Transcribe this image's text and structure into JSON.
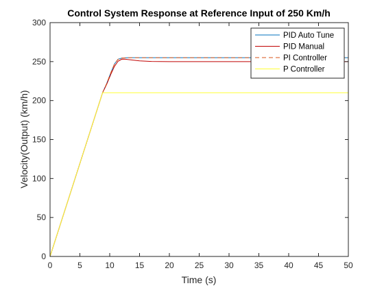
{
  "chart_data": {
    "type": "line",
    "title": "Control System Response at Reference Input of 250 Km/h",
    "xlabel": "Time (s)",
    "ylabel": "Velocity(Output) (km/h)",
    "xlim": [
      0,
      50
    ],
    "ylim": [
      0,
      300
    ],
    "xticks": [
      0,
      5,
      10,
      15,
      20,
      25,
      30,
      35,
      40,
      45,
      50
    ],
    "yticks": [
      0,
      50,
      100,
      150,
      200,
      250,
      300
    ],
    "xtick_labels": [
      "0",
      "5",
      "10",
      "15",
      "20",
      "25",
      "30",
      "35",
      "40",
      "45",
      "50"
    ],
    "ytick_labels": [
      "0",
      "50",
      "100",
      "150",
      "200",
      "250",
      "300"
    ],
    "grid": false,
    "legend_position": "top-right",
    "series": [
      {
        "name": "PID Auto Tune",
        "color": "#0072BD",
        "dash": "solid",
        "x": [
          0,
          8.8,
          9.5,
          10.2,
          10.8,
          11.4,
          12,
          13,
          15,
          20,
          30,
          40,
          50
        ],
        "y": [
          0,
          210,
          222,
          236,
          247,
          253,
          254.5,
          255,
          255,
          255,
          255,
          255,
          255
        ]
      },
      {
        "name": "PID Manual",
        "color": "#C00000",
        "dash": "solid",
        "x": [
          0,
          8.8,
          9.5,
          10.2,
          10.8,
          11.4,
          12,
          12.5,
          13.5,
          15,
          17,
          20,
          25,
          30,
          40,
          50
        ],
        "y": [
          0,
          210,
          221,
          234,
          244,
          250.5,
          253,
          253.2,
          252.3,
          251,
          250.2,
          250,
          250,
          250,
          250,
          250
        ]
      },
      {
        "name": "PI Controller",
        "color": "#D95319",
        "dash": "dashed",
        "x": [
          0,
          8.8,
          9.5,
          10.2,
          10.8,
          11.4,
          12,
          13,
          15,
          20,
          30,
          40,
          50
        ],
        "y": [
          0,
          210,
          222,
          236,
          247,
          253,
          254.5,
          255,
          255,
          255,
          255,
          255,
          255
        ]
      },
      {
        "name": "P Controller",
        "color": "#FFFF33",
        "dash": "solid",
        "x": [
          0,
          8.8,
          50
        ],
        "y": [
          0,
          210,
          210
        ]
      }
    ]
  }
}
